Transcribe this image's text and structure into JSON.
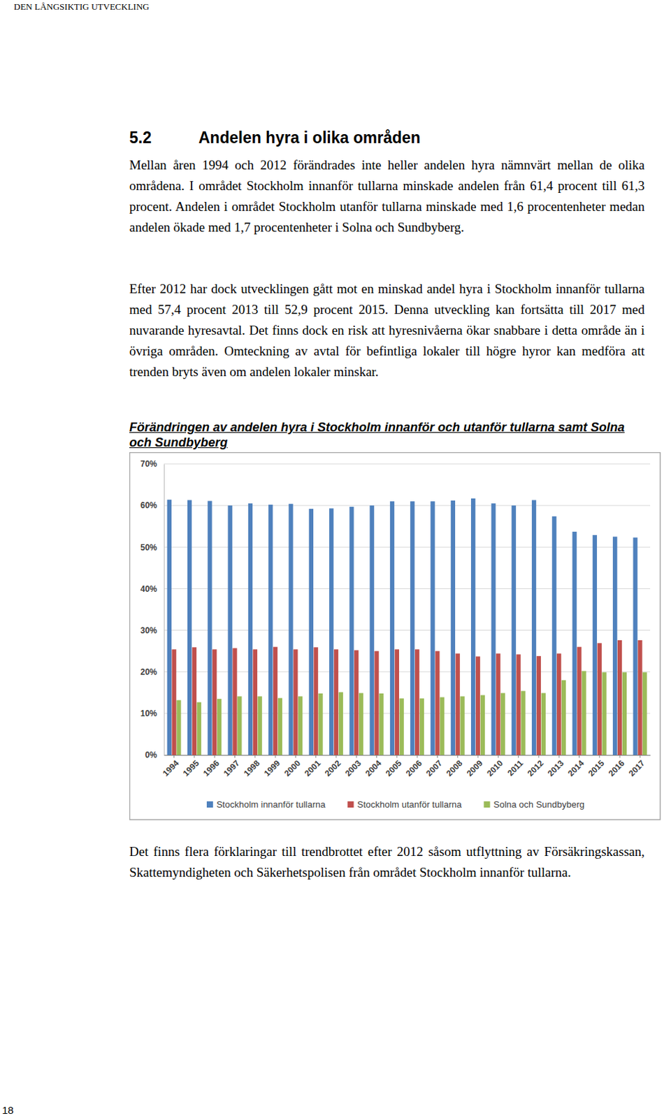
{
  "header": "DEN LÅNGSIKTIG UTVECKLING",
  "section": {
    "number": "5.2",
    "title": "Andelen hyra i olika områden"
  },
  "paragraphs": [
    "Mellan åren 1994 och 2012 förändrades inte heller andelen hyra nämnvärt mellan de olika områdena. I området Stockholm innanför tullarna minskade andelen från 61,4 procent till 61,3 procent. Andelen i området Stockholm utanför tullarna minskade med 1,6 procentenheter medan andelen ökade med 1,7 procentenheter i Solna och Sundbyberg.",
    "Efter 2012 har dock utvecklingen gått mot en minskad andel hyra i Stockholm innanför tullarna med 57,4 procent 2013 till 52,9 procent 2015. Denna utveckling kan fortsätta till 2017 med nuvarande hyresavtal. Det finns dock en risk att hyresnivåerna ökar snabbare i detta område än i övriga områden. Omteckning av avtal för befintliga lokaler till högre hyror kan medföra att trenden bryts även om andelen lokaler minskar."
  ],
  "figure_title": "Förändringen av andelen hyra i Stockholm innanför och utanför tullarna samt Solna och Sundbyberg",
  "chart_data": {
    "type": "bar",
    "categories": [
      "1994",
      "1995",
      "1996",
      "1997",
      "1998",
      "1999",
      "2000",
      "2001",
      "2002",
      "2003",
      "2004",
      "2005",
      "2006",
      "2007",
      "2008",
      "2009",
      "2010",
      "2011",
      "2012",
      "2013",
      "2014",
      "2015",
      "2016",
      "2017"
    ],
    "series": [
      {
        "name": "Stockholm innanför tullarna",
        "color": "#4f81bd",
        "values": [
          61.4,
          61.3,
          61.1,
          60.0,
          60.5,
          60.2,
          60.4,
          59.2,
          59.3,
          59.7,
          60.0,
          61.0,
          61.0,
          61.0,
          61.2,
          61.7,
          60.5,
          60.0,
          61.3,
          57.4,
          53.7,
          52.9,
          52.5,
          52.3
        ]
      },
      {
        "name": "Stockholm utanför tullarna",
        "color": "#c0504d",
        "values": [
          25.4,
          25.9,
          25.4,
          25.7,
          25.4,
          26.0,
          25.4,
          25.9,
          25.4,
          25.2,
          25.0,
          25.4,
          25.4,
          25.0,
          24.4,
          23.7,
          24.4,
          24.2,
          23.8,
          24.4,
          26.0,
          26.9,
          27.6,
          27.6
        ]
      },
      {
        "name": "Solna och Sundbyberg",
        "color": "#9bbb59",
        "values": [
          13.2,
          12.7,
          13.5,
          14.1,
          14.1,
          13.7,
          14.1,
          14.8,
          15.1,
          14.9,
          14.8,
          13.6,
          13.6,
          13.9,
          14.1,
          14.4,
          14.9,
          15.4,
          14.9,
          18.0,
          20.2,
          19.9,
          19.9,
          19.9
        ]
      }
    ],
    "ylim": [
      0,
      70
    ],
    "yticks": [
      {
        "value": 0,
        "label": "0%"
      },
      {
        "value": 10,
        "label": "10%"
      },
      {
        "value": 20,
        "label": "20%"
      },
      {
        "value": 30,
        "label": "30%"
      },
      {
        "value": 40,
        "label": "40%"
      },
      {
        "value": 50,
        "label": "50%"
      },
      {
        "value": 60,
        "label": "60%"
      },
      {
        "value": 70,
        "label": "70%"
      }
    ],
    "grid": true,
    "legend": "bottom"
  },
  "closing_paragraph": "Det finns flera förklaringar till trendbrottet efter 2012 såsom utflyttning av Försäkringskassan, Skattemyndigheten och Säkerhetspolisen från området Stockholm innanför tullarna.",
  "page_number": "18"
}
